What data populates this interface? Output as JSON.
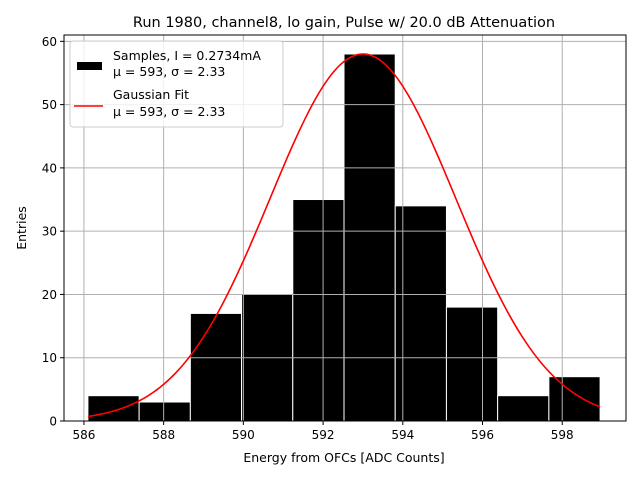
{
  "chart_data": {
    "type": "bar",
    "title": "Run 1980, channel8, lo gain, Pulse w/ 20.0 dB Attenuation",
    "xlabel": "Energy from OFCs [ADC Counts]",
    "ylabel": "Entries",
    "xlim": [
      585.5,
      599.6
    ],
    "ylim": [
      0,
      61
    ],
    "xticks": [
      586,
      588,
      590,
      592,
      594,
      596,
      598
    ],
    "yticks": [
      0,
      10,
      20,
      30,
      40,
      50,
      60
    ],
    "grid": true,
    "legend_position": "top-left",
    "bin_edges": [
      586.1,
      587.385,
      588.67,
      589.955,
      591.24,
      592.525,
      593.81,
      595.095,
      596.38,
      597.665,
      598.95
    ],
    "values": [
      4,
      3,
      17,
      20,
      35,
      58,
      34,
      18,
      4,
      7
    ],
    "bar_color": "#000000",
    "bar_edge_color": "#ffffff",
    "fit": {
      "name": "Gaussian Fit",
      "amplitude": 58,
      "mu": 593.0,
      "sigma": 2.33,
      "x_range": [
        586.1,
        598.95
      ],
      "color": "#ff0000"
    },
    "legend": [
      {
        "label": "Samples, I = 0.2734mA",
        "sublabel": "μ = 593, σ = 2.33",
        "kind": "patch",
        "color": "#000000"
      },
      {
        "label": "Gaussian Fit",
        "sublabel": "μ = 593, σ = 2.33",
        "kind": "line",
        "color": "#ff0000"
      }
    ]
  }
}
